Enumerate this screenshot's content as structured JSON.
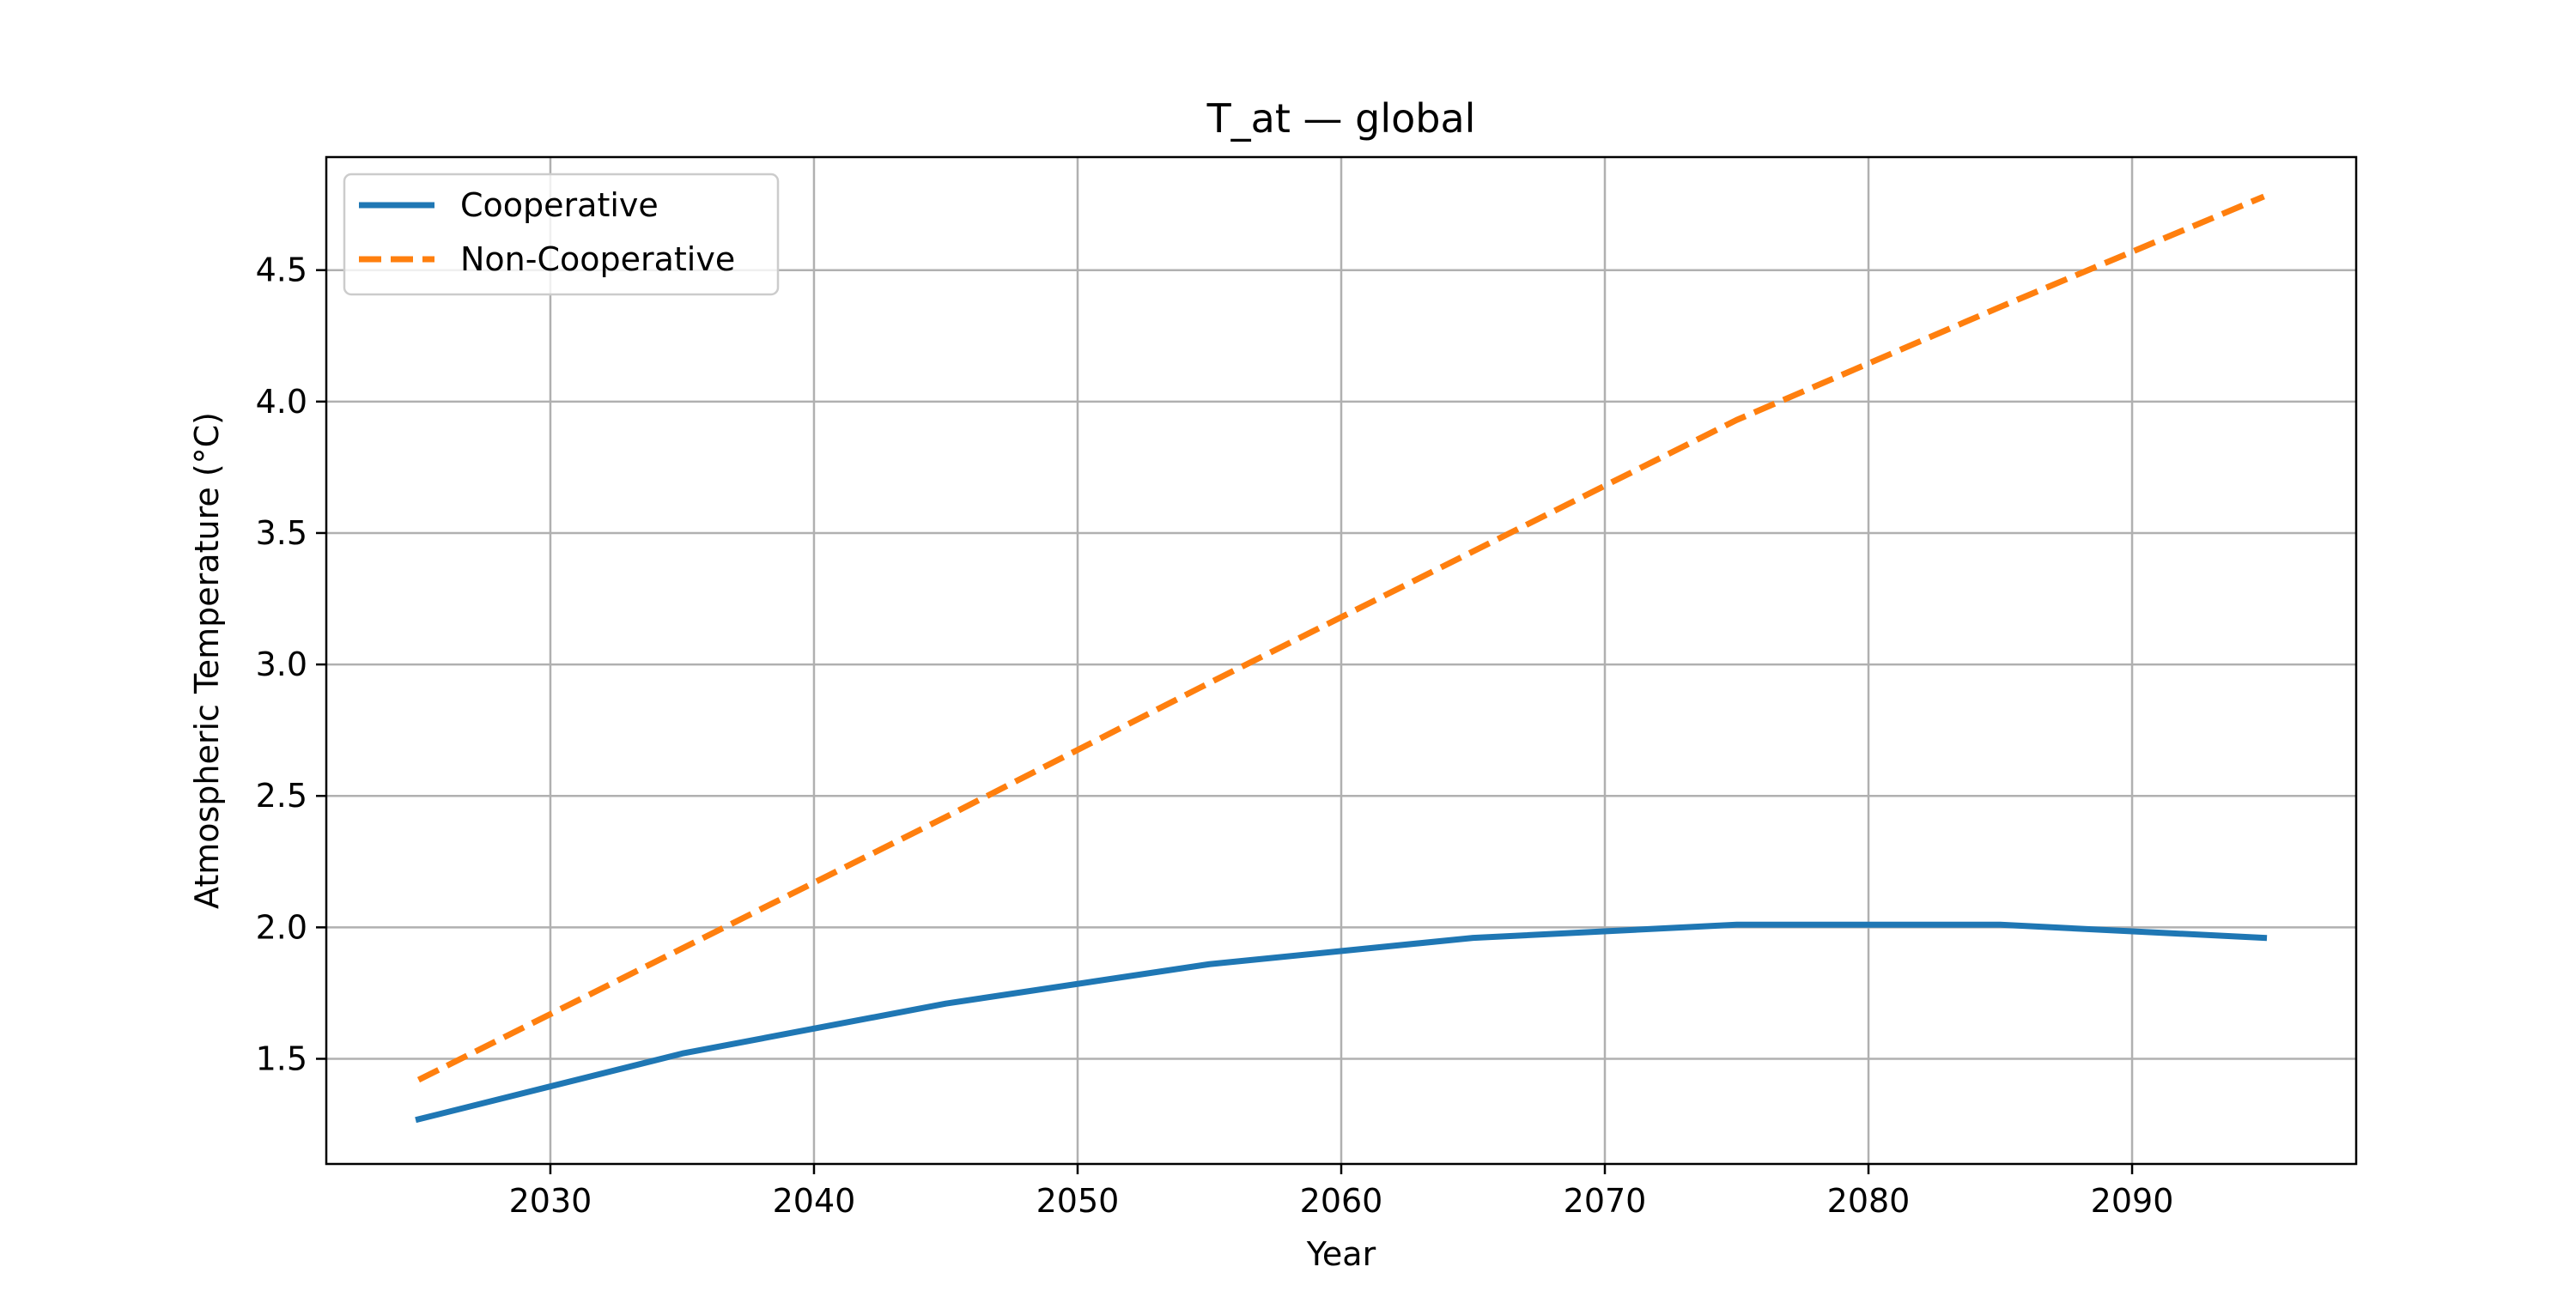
{
  "chart_data": {
    "type": "line",
    "title": "T_at — global",
    "xlabel": "Year",
    "ylabel": "Atmospheric Temperature (°C)",
    "xlim": [
      2021.5,
      2098.5
    ],
    "ylim": [
      1.1,
      4.93
    ],
    "xticks": [
      2030,
      2040,
      2050,
      2060,
      2070,
      2080,
      2090
    ],
    "yticks": [
      1.5,
      2.0,
      2.5,
      3.0,
      3.5,
      4.0,
      4.5
    ],
    "grid": true,
    "legend_position": "top-left",
    "x": [
      2025,
      2035,
      2045,
      2055,
      2065,
      2075,
      2085,
      2095
    ],
    "series": [
      {
        "name": "Cooperative",
        "color": "#1f77b4",
        "style": "solid",
        "values": [
          1.27,
          1.52,
          1.71,
          1.86,
          1.96,
          2.01,
          2.01,
          1.96
        ]
      },
      {
        "name": "Non-Cooperative",
        "color": "#ff7f0e",
        "style": "dashed",
        "values": [
          1.42,
          1.92,
          2.42,
          2.93,
          3.43,
          3.93,
          4.36,
          4.78
        ]
      }
    ]
  }
}
